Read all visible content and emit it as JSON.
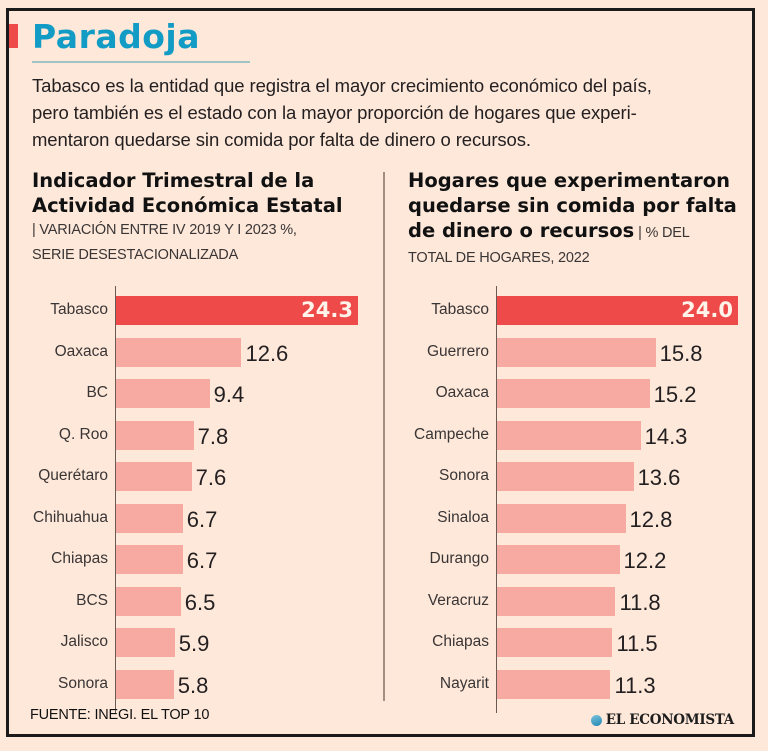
{
  "header": {
    "title": "Paradoja",
    "intro_lines": [
      "Tabasco es la entidad que registra el mayor crecimiento económico del país,",
      "pero también es el estado con la mayor proporción de hogares que experi-",
      "mentaron quedarse sin comida por falta de dinero o recursos."
    ]
  },
  "colors": {
    "title": "#129cc5",
    "accent": "#ee4a4a",
    "bar": "#f6aaa2",
    "bar_highlight": "#ee4a4a",
    "background": "#fde8da"
  },
  "left_panel": {
    "title_lines": [
      "Indicador Trimestral de la",
      "Actividad Económica Estatal"
    ],
    "subtitle_lines": [
      "| VARIACIÓN ENTRE IV 2019 Y I 2023 %,",
      "SERIE DESESTACIONALIZADA"
    ]
  },
  "right_panel": {
    "title_lines": [
      "Hogares que experimentaron",
      "quedarse sin comida por falta",
      "de dinero o recursos"
    ],
    "subtitle_inline": " | % DEL",
    "subtitle_lines": [
      "TOTAL DE HOGARES, 2022"
    ]
  },
  "chart_data": [
    {
      "type": "bar",
      "orientation": "horizontal",
      "title": "Indicador Trimestral de la Actividad Económica Estatal",
      "subtitle": "Variación entre IV 2019 y I 2023 %, serie desestacionalizada",
      "categories": [
        "Tabasco",
        "Oaxaca",
        "BC",
        "Q. Roo",
        "Querétaro",
        "Chihuahua",
        "Chiapas",
        "BCS",
        "Jalisco",
        "Sonora"
      ],
      "values": [
        24.3,
        12.6,
        9.4,
        7.8,
        7.6,
        6.7,
        6.7,
        6.5,
        5.9,
        5.8
      ],
      "labels": [
        "24.3",
        "12.6",
        "9.4",
        "7.8",
        "7.6",
        "6.7",
        "6.7",
        "6.5",
        "5.9",
        "5.8"
      ],
      "highlight_index": 0,
      "xlim": [
        0,
        24.3
      ],
      "xlabel": "",
      "ylabel": "",
      "grid": false
    },
    {
      "type": "bar",
      "orientation": "horizontal",
      "title": "Hogares que experimentaron quedarse sin comida por falta de dinero o recursos",
      "subtitle": "% del total de hogares, 2022",
      "categories": [
        "Tabasco",
        "Guerrero",
        "Oaxaca",
        "Campeche",
        "Sonora",
        "Sinaloa",
        "Durango",
        "Veracruz",
        "Chiapas",
        "Nayarit"
      ],
      "values": [
        24.0,
        15.8,
        15.2,
        14.3,
        13.6,
        12.8,
        12.2,
        11.8,
        11.5,
        11.3
      ],
      "labels": [
        "24.0",
        "15.8",
        "15.2",
        "14.3",
        "13.6",
        "12.8",
        "12.2",
        "11.8",
        "11.5",
        "11.3"
      ],
      "highlight_index": 0,
      "xlim": [
        0,
        24.0
      ],
      "xlabel": "",
      "ylabel": "",
      "grid": false
    }
  ],
  "footer": {
    "source": "FUENTE: INEGI. EL TOP 10",
    "logo_icon": "el-economista-globe-icon",
    "logo_text": "EL ECONOMISTA"
  }
}
